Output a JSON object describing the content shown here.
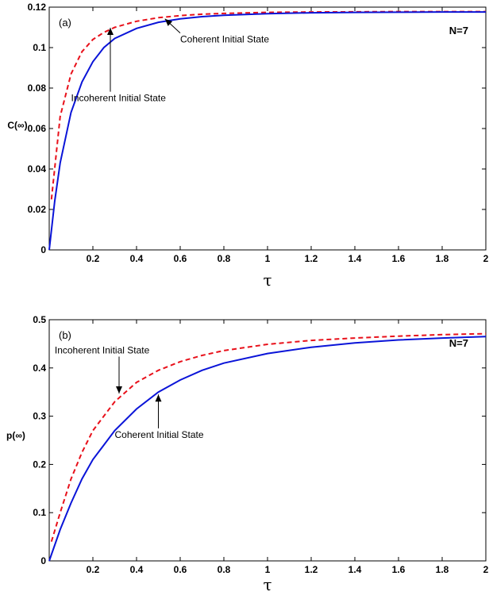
{
  "colors": {
    "coherent": "#0a14d8",
    "incoherent": "#e8101a",
    "axis": "#000000"
  },
  "chart_data": [
    {
      "type": "line",
      "panel_label": "(a)",
      "xlabel": "τ",
      "ylabel": "C(∞)",
      "n_label": "N=7",
      "xlim": [
        0,
        2
      ],
      "ylim": [
        0,
        0.12
      ],
      "xticks": [
        0.2,
        0.4,
        0.6,
        0.8,
        1,
        1.2,
        1.4,
        1.6,
        1.8,
        2
      ],
      "xtick_labels": [
        "0.2",
        "0.4",
        "0.6",
        "0.8",
        "1",
        "1.2",
        "1.4",
        "1.6",
        "1.8",
        "2"
      ],
      "yticks": [
        0,
        0.02,
        0.04,
        0.06,
        0.08,
        0.1,
        0.12
      ],
      "ytick_labels": [
        "0",
        "0.02",
        "0.04",
        "0.06",
        "0.08",
        "0.1",
        "0.12"
      ],
      "series": [
        {
          "color_key": "incoherent",
          "style": "dashed",
          "x": [
            0.01,
            0.05,
            0.1,
            0.15,
            0.2,
            0.25,
            0.3,
            0.4,
            0.5,
            0.6,
            0.7,
            0.8,
            1.0,
            1.2,
            1.4,
            1.6,
            1.8,
            2.0
          ],
          "y": [
            0.025,
            0.066,
            0.087,
            0.098,
            0.104,
            0.1075,
            0.11,
            0.113,
            0.1148,
            0.1158,
            0.1165,
            0.1169,
            0.1174,
            0.1176,
            0.1177,
            0.1178,
            0.1178,
            0.1178
          ]
        },
        {
          "color_key": "coherent",
          "style": "solid",
          "x": [
            0.0,
            0.025,
            0.05,
            0.1,
            0.15,
            0.2,
            0.25,
            0.3,
            0.4,
            0.5,
            0.6,
            0.7,
            0.8,
            1.0,
            1.2,
            1.4,
            1.6,
            1.8,
            2.0
          ],
          "y": [
            0.0,
            0.024,
            0.043,
            0.068,
            0.083,
            0.093,
            0.1,
            0.1045,
            0.1095,
            0.1125,
            0.1142,
            0.1153,
            0.116,
            0.1168,
            0.1172,
            0.1174,
            0.1175,
            0.1176,
            0.1176
          ]
        }
      ],
      "annotations": [
        {
          "text": "Coherent Initial State",
          "x": 0.6,
          "y": 0.1025,
          "arrow_to": [
            0.53,
            0.1142
          ]
        },
        {
          "text": "Incoherent Initial State",
          "x": 0.1,
          "y": 0.0735,
          "arrow_to": [
            0.28,
            0.1098
          ]
        }
      ]
    },
    {
      "type": "line",
      "panel_label": "(b)",
      "xlabel": "τ",
      "ylabel": "p(∞)",
      "n_label": "N=7",
      "xlim": [
        0,
        2
      ],
      "ylim": [
        0,
        0.5
      ],
      "xticks": [
        0.2,
        0.4,
        0.6,
        0.8,
        1,
        1.2,
        1.4,
        1.6,
        1.8,
        2
      ],
      "xtick_labels": [
        "0.2",
        "0.4",
        "0.6",
        "0.8",
        "1",
        "1.2",
        "1.4",
        "1.6",
        "1.8",
        "2"
      ],
      "yticks": [
        0,
        0.1,
        0.2,
        0.3,
        0.4,
        0.5
      ],
      "ytick_labels": [
        "0",
        "0.1",
        "0.2",
        "0.3",
        "0.4",
        "0.5"
      ],
      "series": [
        {
          "color_key": "incoherent",
          "style": "dashed",
          "x": [
            0.01,
            0.05,
            0.1,
            0.15,
            0.2,
            0.3,
            0.4,
            0.5,
            0.6,
            0.7,
            0.8,
            1.0,
            1.2,
            1.4,
            1.6,
            1.8,
            2.0
          ],
          "y": [
            0.04,
            0.1,
            0.17,
            0.225,
            0.27,
            0.33,
            0.37,
            0.395,
            0.413,
            0.426,
            0.436,
            0.449,
            0.457,
            0.462,
            0.466,
            0.469,
            0.471
          ]
        },
        {
          "color_key": "coherent",
          "style": "solid",
          "x": [
            0.0,
            0.05,
            0.1,
            0.15,
            0.2,
            0.3,
            0.4,
            0.5,
            0.6,
            0.7,
            0.8,
            1.0,
            1.2,
            1.4,
            1.6,
            1.8,
            2.0
          ],
          "y": [
            0.0,
            0.065,
            0.12,
            0.17,
            0.21,
            0.27,
            0.315,
            0.35,
            0.375,
            0.395,
            0.41,
            0.43,
            0.443,
            0.452,
            0.458,
            0.462,
            0.465
          ]
        }
      ],
      "annotations": [
        {
          "text": "Incoherent Initial State",
          "x": 0.025,
          "y": 0.43,
          "arrow_to": [
            0.32,
            0.347
          ]
        },
        {
          "text": "Coherent Initial State",
          "x": 0.3,
          "y": 0.255,
          "arrow_to": [
            0.5,
            0.345
          ]
        }
      ]
    }
  ]
}
